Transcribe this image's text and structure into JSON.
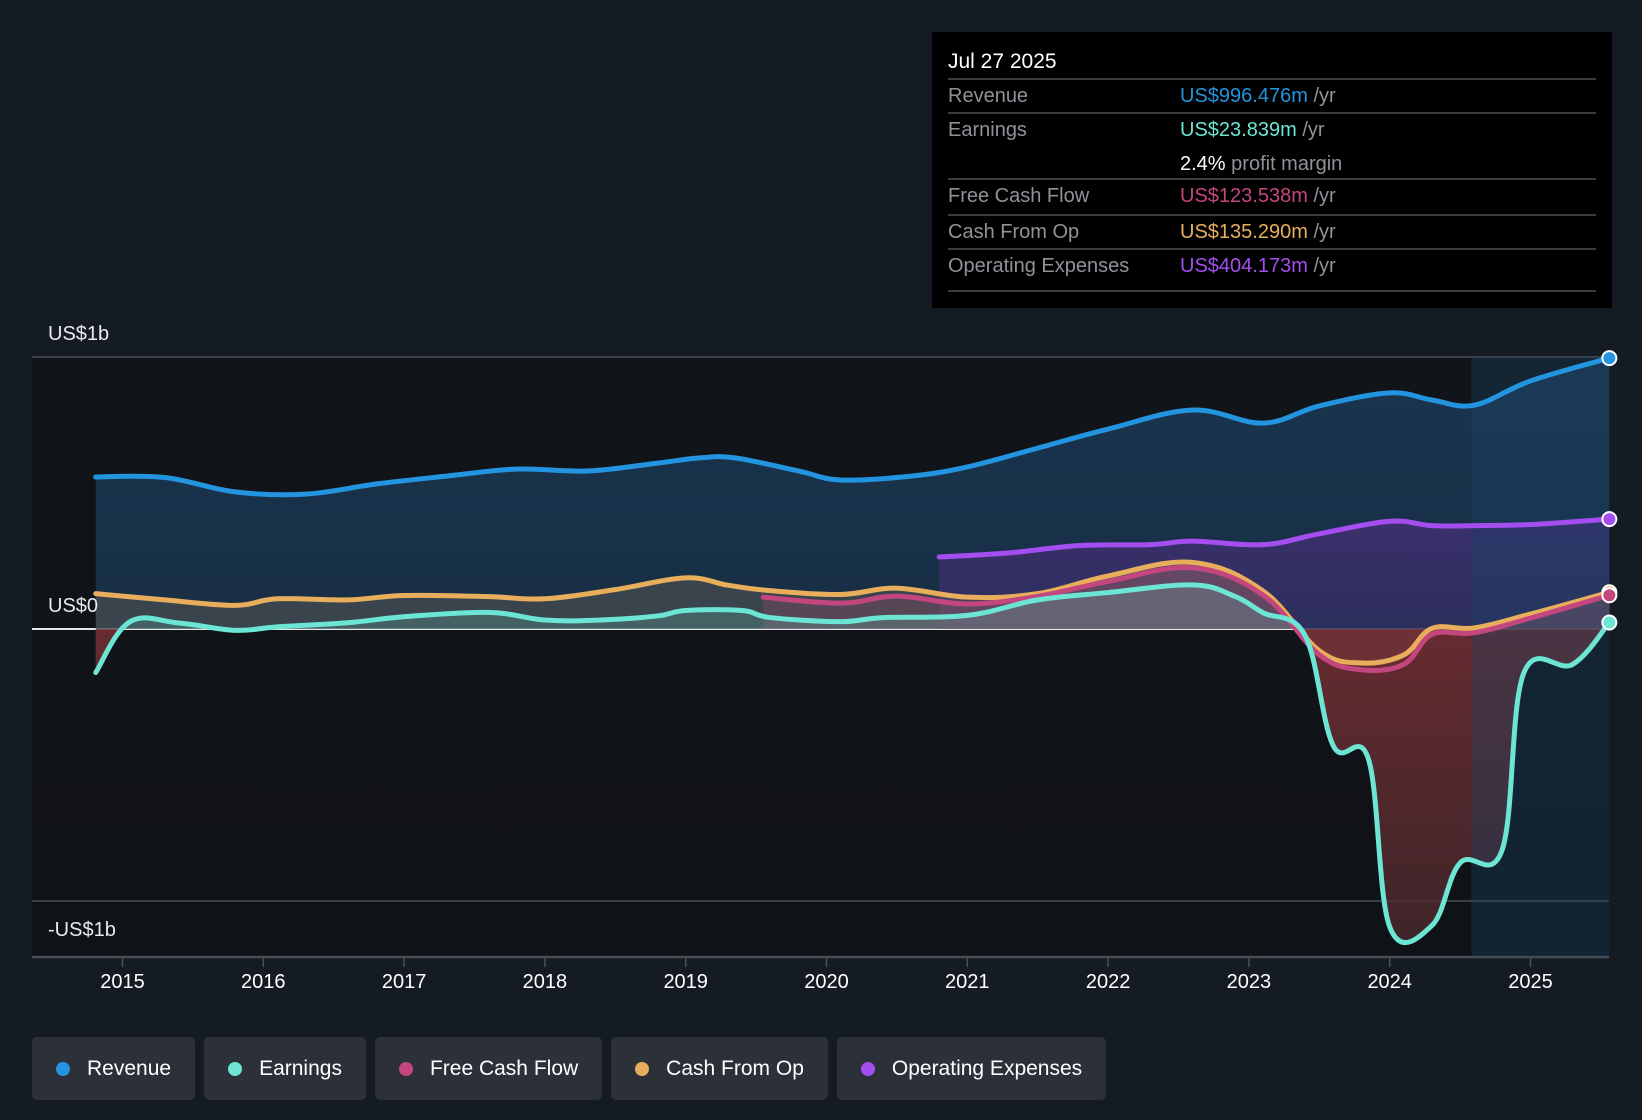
{
  "tooltip": {
    "date": "Jul 27 2025",
    "rows": [
      {
        "label": "Revenue",
        "value": "US$996.476m",
        "unit": "/yr",
        "color": "#2394df"
      },
      {
        "label": "Earnings",
        "value": "US$23.839m",
        "unit": "/yr",
        "color": "#6ce5d4"
      },
      {
        "label": "",
        "value": "2.4%",
        "unit": "profit margin",
        "color": "#ffffff"
      },
      {
        "label": "Free Cash Flow",
        "value": "US$123.538m",
        "unit": "/yr",
        "color": "#c4467f"
      },
      {
        "label": "Cash From Op",
        "value": "US$135.290m",
        "unit": "/yr",
        "color": "#e8ae5c"
      },
      {
        "label": "Operating Expenses",
        "value": "US$404.173m",
        "unit": "/yr",
        "color": "#a44ef0"
      }
    ]
  },
  "legend": [
    {
      "label": "Revenue",
      "color": "#2394df"
    },
    {
      "label": "Earnings",
      "color": "#6ce5d4"
    },
    {
      "label": "Free Cash Flow",
      "color": "#c4467f"
    },
    {
      "label": "Cash From Op",
      "color": "#e8ae5c"
    },
    {
      "label": "Operating Expenses",
      "color": "#a44ef0"
    }
  ],
  "chart_data": {
    "type": "area",
    "title": "",
    "xlabel": "",
    "ylabel": "",
    "units": "US$ millions",
    "y_tick_labels": [
      "US$1b",
      "US$0",
      "-US$1b"
    ],
    "y_ticks": [
      1000,
      0,
      -1000
    ],
    "ylim": [
      -1210,
      1000
    ],
    "x_tick_labels": [
      "2015",
      "2016",
      "2017",
      "2018",
      "2019",
      "2020",
      "2021",
      "2022",
      "2023",
      "2024",
      "2025"
    ],
    "x_ticks": [
      2015,
      2016,
      2017,
      2018,
      2019,
      2020,
      2021,
      2022,
      2023,
      2024,
      2025
    ],
    "xlim": [
      2014.36,
      2025.56
    ],
    "highlight_start": 2024.58,
    "grid": true,
    "legend_position": "bottom-left",
    "series": [
      {
        "name": "Revenue",
        "color": "#2394df",
        "x": [
          2014.81,
          2015.3,
          2015.8,
          2016.3,
          2016.8,
          2017.3,
          2017.8,
          2018.3,
          2018.8,
          2019.1,
          2019.35,
          2019.8,
          2020.1,
          2020.6,
          2021.0,
          2021.5,
          2022.0,
          2022.6,
          2023.1,
          2023.5,
          2024.0,
          2024.3,
          2024.6,
          2025.0,
          2025.56
        ],
        "y": [
          559,
          557,
          504,
          496,
          533,
          562,
          588,
          581,
          610,
          629,
          629,
          581,
          548,
          562,
          596,
          665,
          735,
          805,
          757,
          820,
          868,
          842,
          823,
          912,
          996
        ]
      },
      {
        "name": "Operating Expenses",
        "color": "#a44ef0",
        "x": [
          2020.8,
          2021.3,
          2021.8,
          2022.3,
          2022.6,
          2023.1,
          2023.5,
          2024.0,
          2024.3,
          2024.6,
          2025.0,
          2025.56
        ],
        "y": [
          265,
          280,
          307,
          310,
          323,
          310,
          350,
          396,
          380,
          380,
          384,
          404
        ]
      },
      {
        "name": "Cash From Op",
        "color": "#e8ae5c",
        "x": [
          2014.81,
          2015.3,
          2015.8,
          2016.1,
          2016.6,
          2017.0,
          2017.6,
          2018.0,
          2018.5,
          2019.0,
          2019.3,
          2019.6,
          2020.1,
          2020.5,
          2021.0,
          2021.5,
          2022.0,
          2022.6,
          2023.1,
          2023.5,
          2023.8,
          2024.1,
          2024.3,
          2024.6,
          2025.0,
          2025.56
        ],
        "y": [
          130,
          107,
          87,
          111,
          107,
          123,
          119,
          111,
          145,
          188,
          161,
          141,
          127,
          150,
          117,
          130,
          195,
          245,
          140,
          -80,
          -125,
          -95,
          2,
          4,
          55,
          135
        ]
      },
      {
        "name": "Free Cash Flow",
        "color": "#c4467f",
        "x": [
          2019.55,
          2020.1,
          2020.5,
          2021.0,
          2021.5,
          2022.0,
          2022.6,
          2023.1,
          2023.5,
          2023.8,
          2024.1,
          2024.3,
          2024.6,
          2025.0,
          2025.56
        ],
        "y": [
          117,
          95,
          121,
          92,
          120,
          175,
          225,
          125,
          -95,
          -150,
          -130,
          -20,
          -14,
          40,
          124
        ]
      },
      {
        "name": "Earnings",
        "color": "#6ce5d4",
        "x": [
          2014.81,
          2015.05,
          2015.4,
          2015.8,
          2016.1,
          2016.6,
          2017.0,
          2017.6,
          2018.0,
          2018.4,
          2018.8,
          2019.0,
          2019.4,
          2019.6,
          2020.1,
          2020.4,
          2021.0,
          2021.5,
          2022.0,
          2022.6,
          2022.9,
          2023.1,
          2023.4,
          2023.6,
          2023.85,
          2024.0,
          2024.3,
          2024.5,
          2024.8,
          2024.95,
          2025.3,
          2025.56
        ],
        "y": [
          -160,
          26,
          22,
          -5,
          8,
          23,
          45,
          61,
          33,
          33,
          48,
          68,
          68,
          42,
          27,
          42,
          50,
          107,
          134,
          162,
          120,
          60,
          -25,
          -430,
          -480,
          -1095,
          -1090,
          -860,
          -810,
          -165,
          -130,
          24
        ]
      }
    ]
  }
}
